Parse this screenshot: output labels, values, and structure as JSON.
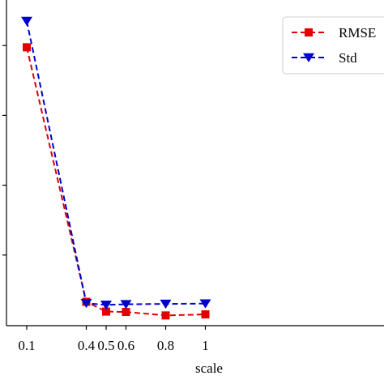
{
  "chart_data": {
    "type": "line",
    "title": "",
    "xlabel": "scale",
    "ylabel": "",
    "x": [
      0.1,
      0.4,
      0.5,
      0.6,
      0.8,
      1.0
    ],
    "x_tick_labels": [
      "0.1",
      "0.4",
      "0.5",
      "0.6",
      "0.8",
      "1"
    ],
    "xlim": [
      0.1,
      1.0
    ],
    "ylim": [
      0,
      1
    ],
    "y_ticks": [
      0.2,
      0.4,
      0.6,
      0.8,
      1.0
    ],
    "grid": false,
    "legend_position": "top-right",
    "series": [
      {
        "name": "RMSE",
        "color": "#e00000",
        "marker": "square",
        "line_style": "dashed",
        "values": [
          0.795,
          0.066,
          0.038,
          0.037,
          0.027,
          0.03
        ]
      },
      {
        "name": "Std",
        "color": "#0000cc",
        "marker": "triangle-down",
        "line_style": "dashed",
        "values": [
          0.87,
          0.062,
          0.057,
          0.059,
          0.06,
          0.061
        ]
      }
    ]
  }
}
